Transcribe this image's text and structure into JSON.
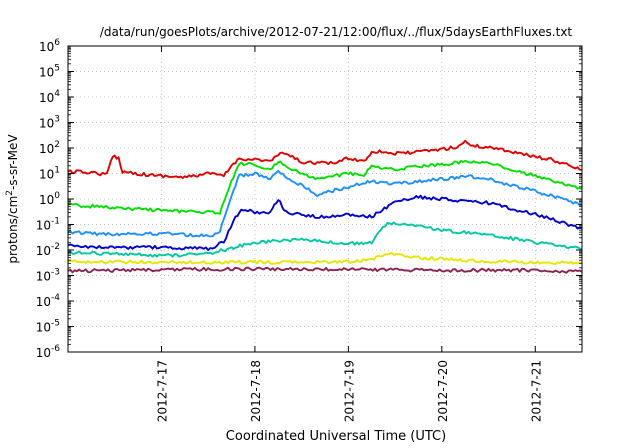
{
  "chart_data": {
    "type": "line",
    "title": "/data/run/goesPlots/archive/2012-07-21/12:00/flux/../flux/5daysEarthFluxes.txt",
    "xlabel": "Coordinated Universal Time (UTC)",
    "ylabel": {
      "prefix": "protons/cm",
      "sup": "2",
      "suffix": "-s-sr-MeV"
    },
    "yscale": "log",
    "ylim": [
      1e-06,
      1000000.0
    ],
    "y_ticks": [
      {
        "value": 1e-06,
        "base": "10",
        "exp": "-6"
      },
      {
        "value": 1e-05,
        "base": "10",
        "exp": "-5"
      },
      {
        "value": 0.0001,
        "base": "10",
        "exp": "-4"
      },
      {
        "value": 0.001,
        "base": "10",
        "exp": "-3"
      },
      {
        "value": 0.01,
        "base": "10",
        "exp": "-2"
      },
      {
        "value": 0.1,
        "base": "10",
        "exp": "-1"
      },
      {
        "value": 1,
        "base": "10",
        "exp": "0"
      },
      {
        "value": 10,
        "base": "10",
        "exp": "1"
      },
      {
        "value": 100,
        "base": "10",
        "exp": "2"
      },
      {
        "value": 1000,
        "base": "10",
        "exp": "3"
      },
      {
        "value": 10000,
        "base": "10",
        "exp": "4"
      },
      {
        "value": 100000,
        "base": "10",
        "exp": "5"
      },
      {
        "value": 1000000,
        "base": "10",
        "exp": "6"
      }
    ],
    "xlim": [
      "2012-07-16T00:00",
      "2012-07-21T12:00"
    ],
    "x_ticks": [
      "2012-7-17",
      "2012-7-18",
      "2012-7-19",
      "2012-7-20",
      "2012-7-21"
    ],
    "x_tick_dates": [
      "2012-07-17T00:00",
      "2012-07-18T00:00",
      "2012-07-19T00:00",
      "2012-07-20T00:00",
      "2012-07-21T00:00"
    ],
    "grid": true,
    "legend": "none",
    "series": [
      {
        "color": "#e00000",
        "points": [
          [
            "2012-07-16T00:00",
            12
          ],
          [
            "2012-07-16T06:00",
            11
          ],
          [
            "2012-07-16T10:00",
            9
          ],
          [
            "2012-07-16T11:30",
            50
          ],
          [
            "2012-07-16T13:00",
            40
          ],
          [
            "2012-07-16T14:00",
            12
          ],
          [
            "2012-07-16T20:00",
            9
          ],
          [
            "2012-07-17T06:00",
            7
          ],
          [
            "2012-07-17T12:00",
            10
          ],
          [
            "2012-07-17T16:00",
            8
          ],
          [
            "2012-07-17T18:00",
            20
          ],
          [
            "2012-07-17T20:00",
            38
          ],
          [
            "2012-07-18T00:00",
            36
          ],
          [
            "2012-07-18T04:00",
            30
          ],
          [
            "2012-07-18T06:00",
            55
          ],
          [
            "2012-07-18T08:00",
            60
          ],
          [
            "2012-07-18T12:00",
            28
          ],
          [
            "2012-07-18T20:00",
            25
          ],
          [
            "2012-07-19T00:00",
            40
          ],
          [
            "2012-07-19T04:00",
            30
          ],
          [
            "2012-07-19T06:00",
            70
          ],
          [
            "2012-07-19T08:00",
            75
          ],
          [
            "2012-07-19T12:00",
            60
          ],
          [
            "2012-07-19T18:00",
            70
          ],
          [
            "2012-07-20T00:00",
            90
          ],
          [
            "2012-07-20T04:00",
            110
          ],
          [
            "2012-07-20T06:00",
            180
          ],
          [
            "2012-07-20T08:00",
            120
          ],
          [
            "2012-07-20T14:00",
            100
          ],
          [
            "2012-07-20T20:00",
            60
          ],
          [
            "2012-07-21T04:00",
            35
          ],
          [
            "2012-07-21T12:00",
            14
          ]
        ]
      },
      {
        "color": "#00e000",
        "points": [
          [
            "2012-07-16T00:00",
            0.6
          ],
          [
            "2012-07-16T12:00",
            0.45
          ],
          [
            "2012-07-17T00:00",
            0.35
          ],
          [
            "2012-07-17T12:00",
            0.3
          ],
          [
            "2012-07-17T15:00",
            0.28
          ],
          [
            "2012-07-17T18:00",
            5
          ],
          [
            "2012-07-17T20:00",
            25
          ],
          [
            "2012-07-18T00:00",
            22
          ],
          [
            "2012-07-18T04:00",
            15
          ],
          [
            "2012-07-18T06:00",
            30
          ],
          [
            "2012-07-18T10:00",
            14
          ],
          [
            "2012-07-18T16:00",
            6
          ],
          [
            "2012-07-19T00:00",
            10
          ],
          [
            "2012-07-19T04:00",
            9
          ],
          [
            "2012-07-19T06:00",
            20
          ],
          [
            "2012-07-19T12:00",
            15
          ],
          [
            "2012-07-20T00:00",
            22
          ],
          [
            "2012-07-20T06:00",
            30
          ],
          [
            "2012-07-20T12:00",
            25
          ],
          [
            "2012-07-21T00:00",
            8
          ],
          [
            "2012-07-21T12:00",
            2.5
          ]
        ]
      },
      {
        "color": "#1e90ff",
        "points": [
          [
            "2012-07-16T00:00",
            0.05
          ],
          [
            "2012-07-16T12:00",
            0.04
          ],
          [
            "2012-07-17T00:00",
            0.045
          ],
          [
            "2012-07-17T12:00",
            0.035
          ],
          [
            "2012-07-17T15:00",
            0.05
          ],
          [
            "2012-07-17T18:00",
            1.5
          ],
          [
            "2012-07-17T20:00",
            8
          ],
          [
            "2012-07-18T00:00",
            10
          ],
          [
            "2012-07-18T04:00",
            6
          ],
          [
            "2012-07-18T06:00",
            12
          ],
          [
            "2012-07-18T10:00",
            5
          ],
          [
            "2012-07-18T16:00",
            1.5
          ],
          [
            "2012-07-19T00:00",
            3
          ],
          [
            "2012-07-19T06:00",
            5
          ],
          [
            "2012-07-19T12:00",
            4
          ],
          [
            "2012-07-20T00:00",
            6
          ],
          [
            "2012-07-20T06:00",
            8
          ],
          [
            "2012-07-20T12:00",
            6
          ],
          [
            "2012-07-21T00:00",
            2
          ],
          [
            "2012-07-21T12:00",
            0.6
          ]
        ]
      },
      {
        "color": "#0000cc",
        "points": [
          [
            "2012-07-16T00:00",
            0.015
          ],
          [
            "2012-07-16T12:00",
            0.012
          ],
          [
            "2012-07-17T00:00",
            0.013
          ],
          [
            "2012-07-17T12:00",
            0.011
          ],
          [
            "2012-07-17T16:00",
            0.02
          ],
          [
            "2012-07-17T19:00",
            0.2
          ],
          [
            "2012-07-17T21:00",
            0.4
          ],
          [
            "2012-07-18T00:00",
            0.3
          ],
          [
            "2012-07-18T04:00",
            0.3
          ],
          [
            "2012-07-18T06:00",
            1.0
          ],
          [
            "2012-07-18T08:00",
            0.3
          ],
          [
            "2012-07-18T16:00",
            0.2
          ],
          [
            "2012-07-19T00:00",
            0.25
          ],
          [
            "2012-07-19T06:00",
            0.2
          ],
          [
            "2012-07-19T12:00",
            0.8
          ],
          [
            "2012-07-19T18:00",
            1.2
          ],
          [
            "2012-07-20T00:00",
            1.0
          ],
          [
            "2012-07-20T12:00",
            0.7
          ],
          [
            "2012-07-21T00:00",
            0.25
          ],
          [
            "2012-07-21T12:00",
            0.07
          ]
        ]
      },
      {
        "color": "#00c8a0",
        "points": [
          [
            "2012-07-16T00:00",
            0.008
          ],
          [
            "2012-07-16T12:00",
            0.007
          ],
          [
            "2012-07-17T00:00",
            0.006
          ],
          [
            "2012-07-17T12:00",
            0.007
          ],
          [
            "2012-07-17T18:00",
            0.012
          ],
          [
            "2012-07-18T00:00",
            0.02
          ],
          [
            "2012-07-18T12:00",
            0.025
          ],
          [
            "2012-07-19T00:00",
            0.018
          ],
          [
            "2012-07-19T06:00",
            0.02
          ],
          [
            "2012-07-19T10:00",
            0.12
          ],
          [
            "2012-07-19T16:00",
            0.1
          ],
          [
            "2012-07-20T00:00",
            0.06
          ],
          [
            "2012-07-20T12:00",
            0.04
          ],
          [
            "2012-07-21T00:00",
            0.02
          ],
          [
            "2012-07-21T12:00",
            0.011
          ]
        ]
      },
      {
        "color": "#e6e600",
        "points": [
          [
            "2012-07-16T00:00",
            0.0035
          ],
          [
            "2012-07-17T00:00",
            0.0033
          ],
          [
            "2012-07-18T00:00",
            0.0033
          ],
          [
            "2012-07-19T00:00",
            0.0034
          ],
          [
            "2012-07-19T06:00",
            0.0045
          ],
          [
            "2012-07-19T10:00",
            0.007
          ],
          [
            "2012-07-19T18:00",
            0.005
          ],
          [
            "2012-07-20T12:00",
            0.0035
          ],
          [
            "2012-07-21T12:00",
            0.003
          ]
        ]
      },
      {
        "color": "#8b2252",
        "points": [
          [
            "2012-07-16T00:00",
            0.0015
          ],
          [
            "2012-07-17T00:00",
            0.0017
          ],
          [
            "2012-07-18T00:00",
            0.0018
          ],
          [
            "2012-07-19T00:00",
            0.0017
          ],
          [
            "2012-07-20T00:00",
            0.0016
          ],
          [
            "2012-07-21T00:00",
            0.0016
          ],
          [
            "2012-07-21T12:00",
            0.0014
          ]
        ]
      }
    ]
  }
}
